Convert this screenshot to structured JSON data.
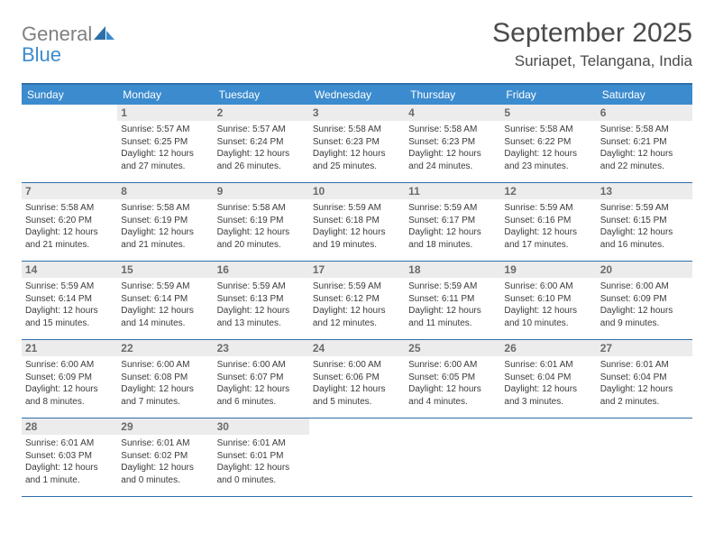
{
  "brand": {
    "word1": "General",
    "word2": "Blue"
  },
  "title": "September 2025",
  "location": "Suriapet, Telangana, India",
  "colors": {
    "header_bg": "#3b8bce",
    "rule": "#2f6fa8",
    "daynum_bg": "#ececec",
    "text": "#333333",
    "muted": "#6a6a6a",
    "logo_gray": "#808080",
    "logo_blue": "#3b8bce",
    "white": "#ffffff"
  },
  "weekdays": [
    "Sunday",
    "Monday",
    "Tuesday",
    "Wednesday",
    "Thursday",
    "Friday",
    "Saturday"
  ],
  "weeks": [
    [
      {
        "n": "",
        "sunrise": "",
        "sunset": "",
        "daylight1": "",
        "daylight2": ""
      },
      {
        "n": "1",
        "sunrise": "Sunrise: 5:57 AM",
        "sunset": "Sunset: 6:25 PM",
        "daylight1": "Daylight: 12 hours",
        "daylight2": "and 27 minutes."
      },
      {
        "n": "2",
        "sunrise": "Sunrise: 5:57 AM",
        "sunset": "Sunset: 6:24 PM",
        "daylight1": "Daylight: 12 hours",
        "daylight2": "and 26 minutes."
      },
      {
        "n": "3",
        "sunrise": "Sunrise: 5:58 AM",
        "sunset": "Sunset: 6:23 PM",
        "daylight1": "Daylight: 12 hours",
        "daylight2": "and 25 minutes."
      },
      {
        "n": "4",
        "sunrise": "Sunrise: 5:58 AM",
        "sunset": "Sunset: 6:23 PM",
        "daylight1": "Daylight: 12 hours",
        "daylight2": "and 24 minutes."
      },
      {
        "n": "5",
        "sunrise": "Sunrise: 5:58 AM",
        "sunset": "Sunset: 6:22 PM",
        "daylight1": "Daylight: 12 hours",
        "daylight2": "and 23 minutes."
      },
      {
        "n": "6",
        "sunrise": "Sunrise: 5:58 AM",
        "sunset": "Sunset: 6:21 PM",
        "daylight1": "Daylight: 12 hours",
        "daylight2": "and 22 minutes."
      }
    ],
    [
      {
        "n": "7",
        "sunrise": "Sunrise: 5:58 AM",
        "sunset": "Sunset: 6:20 PM",
        "daylight1": "Daylight: 12 hours",
        "daylight2": "and 21 minutes."
      },
      {
        "n": "8",
        "sunrise": "Sunrise: 5:58 AM",
        "sunset": "Sunset: 6:19 PM",
        "daylight1": "Daylight: 12 hours",
        "daylight2": "and 21 minutes."
      },
      {
        "n": "9",
        "sunrise": "Sunrise: 5:58 AM",
        "sunset": "Sunset: 6:19 PM",
        "daylight1": "Daylight: 12 hours",
        "daylight2": "and 20 minutes."
      },
      {
        "n": "10",
        "sunrise": "Sunrise: 5:59 AM",
        "sunset": "Sunset: 6:18 PM",
        "daylight1": "Daylight: 12 hours",
        "daylight2": "and 19 minutes."
      },
      {
        "n": "11",
        "sunrise": "Sunrise: 5:59 AM",
        "sunset": "Sunset: 6:17 PM",
        "daylight1": "Daylight: 12 hours",
        "daylight2": "and 18 minutes."
      },
      {
        "n": "12",
        "sunrise": "Sunrise: 5:59 AM",
        "sunset": "Sunset: 6:16 PM",
        "daylight1": "Daylight: 12 hours",
        "daylight2": "and 17 minutes."
      },
      {
        "n": "13",
        "sunrise": "Sunrise: 5:59 AM",
        "sunset": "Sunset: 6:15 PM",
        "daylight1": "Daylight: 12 hours",
        "daylight2": "and 16 minutes."
      }
    ],
    [
      {
        "n": "14",
        "sunrise": "Sunrise: 5:59 AM",
        "sunset": "Sunset: 6:14 PM",
        "daylight1": "Daylight: 12 hours",
        "daylight2": "and 15 minutes."
      },
      {
        "n": "15",
        "sunrise": "Sunrise: 5:59 AM",
        "sunset": "Sunset: 6:14 PM",
        "daylight1": "Daylight: 12 hours",
        "daylight2": "and 14 minutes."
      },
      {
        "n": "16",
        "sunrise": "Sunrise: 5:59 AM",
        "sunset": "Sunset: 6:13 PM",
        "daylight1": "Daylight: 12 hours",
        "daylight2": "and 13 minutes."
      },
      {
        "n": "17",
        "sunrise": "Sunrise: 5:59 AM",
        "sunset": "Sunset: 6:12 PM",
        "daylight1": "Daylight: 12 hours",
        "daylight2": "and 12 minutes."
      },
      {
        "n": "18",
        "sunrise": "Sunrise: 5:59 AM",
        "sunset": "Sunset: 6:11 PM",
        "daylight1": "Daylight: 12 hours",
        "daylight2": "and 11 minutes."
      },
      {
        "n": "19",
        "sunrise": "Sunrise: 6:00 AM",
        "sunset": "Sunset: 6:10 PM",
        "daylight1": "Daylight: 12 hours",
        "daylight2": "and 10 minutes."
      },
      {
        "n": "20",
        "sunrise": "Sunrise: 6:00 AM",
        "sunset": "Sunset: 6:09 PM",
        "daylight1": "Daylight: 12 hours",
        "daylight2": "and 9 minutes."
      }
    ],
    [
      {
        "n": "21",
        "sunrise": "Sunrise: 6:00 AM",
        "sunset": "Sunset: 6:09 PM",
        "daylight1": "Daylight: 12 hours",
        "daylight2": "and 8 minutes."
      },
      {
        "n": "22",
        "sunrise": "Sunrise: 6:00 AM",
        "sunset": "Sunset: 6:08 PM",
        "daylight1": "Daylight: 12 hours",
        "daylight2": "and 7 minutes."
      },
      {
        "n": "23",
        "sunrise": "Sunrise: 6:00 AM",
        "sunset": "Sunset: 6:07 PM",
        "daylight1": "Daylight: 12 hours",
        "daylight2": "and 6 minutes."
      },
      {
        "n": "24",
        "sunrise": "Sunrise: 6:00 AM",
        "sunset": "Sunset: 6:06 PM",
        "daylight1": "Daylight: 12 hours",
        "daylight2": "and 5 minutes."
      },
      {
        "n": "25",
        "sunrise": "Sunrise: 6:00 AM",
        "sunset": "Sunset: 6:05 PM",
        "daylight1": "Daylight: 12 hours",
        "daylight2": "and 4 minutes."
      },
      {
        "n": "26",
        "sunrise": "Sunrise: 6:01 AM",
        "sunset": "Sunset: 6:04 PM",
        "daylight1": "Daylight: 12 hours",
        "daylight2": "and 3 minutes."
      },
      {
        "n": "27",
        "sunrise": "Sunrise: 6:01 AM",
        "sunset": "Sunset: 6:04 PM",
        "daylight1": "Daylight: 12 hours",
        "daylight2": "and 2 minutes."
      }
    ],
    [
      {
        "n": "28",
        "sunrise": "Sunrise: 6:01 AM",
        "sunset": "Sunset: 6:03 PM",
        "daylight1": "Daylight: 12 hours",
        "daylight2": "and 1 minute."
      },
      {
        "n": "29",
        "sunrise": "Sunrise: 6:01 AM",
        "sunset": "Sunset: 6:02 PM",
        "daylight1": "Daylight: 12 hours",
        "daylight2": "and 0 minutes."
      },
      {
        "n": "30",
        "sunrise": "Sunrise: 6:01 AM",
        "sunset": "Sunset: 6:01 PM",
        "daylight1": "Daylight: 12 hours",
        "daylight2": "and 0 minutes."
      },
      {
        "n": "",
        "sunrise": "",
        "sunset": "",
        "daylight1": "",
        "daylight2": ""
      },
      {
        "n": "",
        "sunrise": "",
        "sunset": "",
        "daylight1": "",
        "daylight2": ""
      },
      {
        "n": "",
        "sunrise": "",
        "sunset": "",
        "daylight1": "",
        "daylight2": ""
      },
      {
        "n": "",
        "sunrise": "",
        "sunset": "",
        "daylight1": "",
        "daylight2": ""
      }
    ]
  ]
}
